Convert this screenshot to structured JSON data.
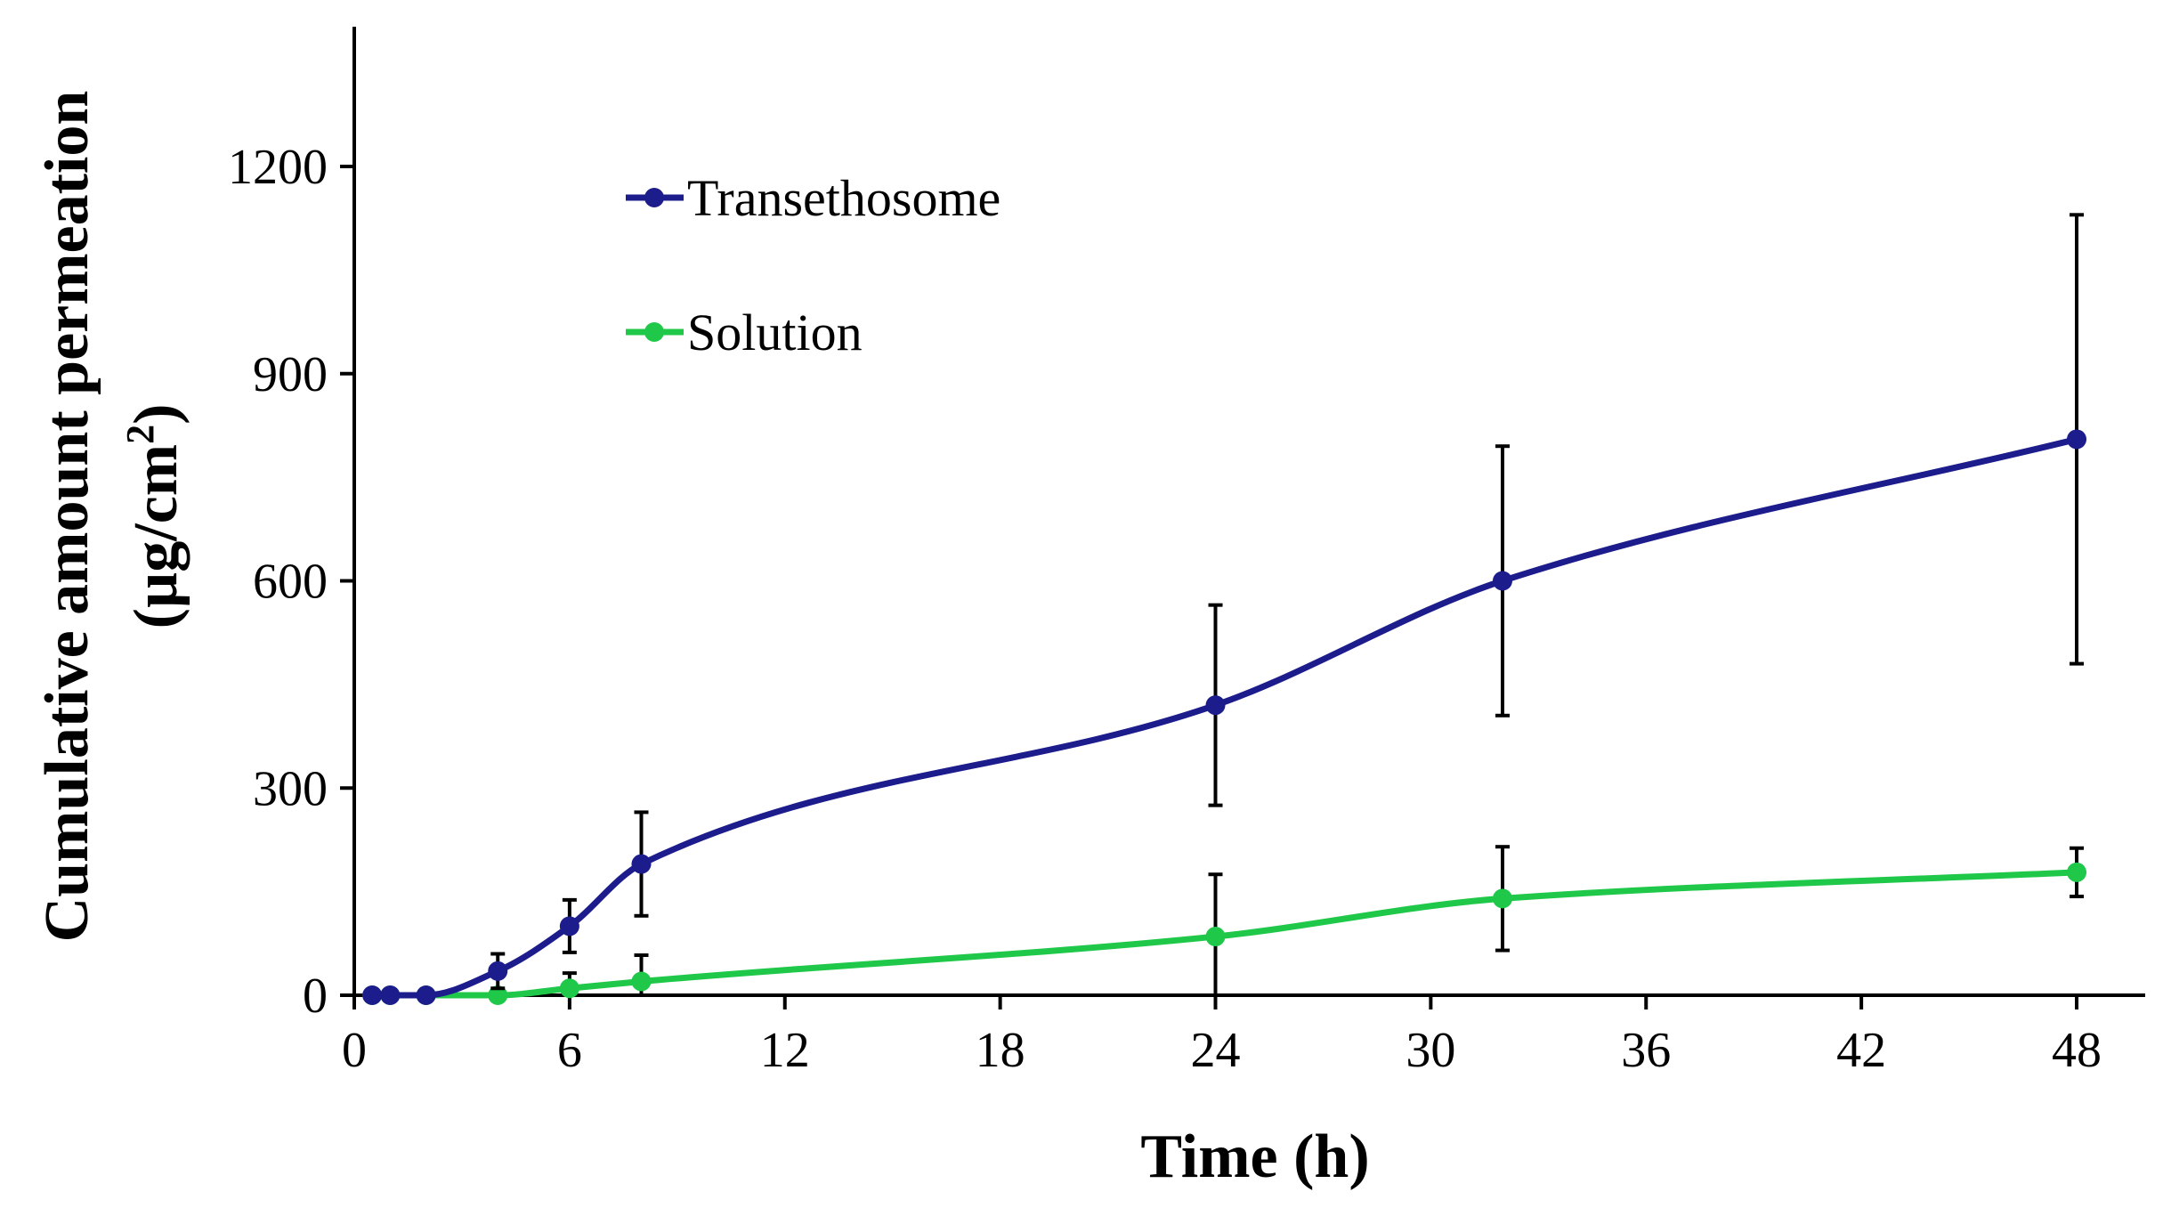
{
  "chart_data": {
    "type": "line",
    "title": "",
    "xlabel": "Time (h)",
    "ylabel_line1": "Cumulative amount permeation",
    "ylabel_line2_prefix": "(µg/cm",
    "ylabel_line2_sup": "2",
    "ylabel_line2_suffix": ")",
    "xlim": [
      0,
      50
    ],
    "ylim": [
      0,
      1400
    ],
    "xticks": [
      0,
      6,
      12,
      18,
      24,
      30,
      36,
      42,
      48
    ],
    "yticks": [
      0,
      300,
      600,
      900,
      1200
    ],
    "grid": false,
    "legend_position": "top-left",
    "series": [
      {
        "name": "Transethosome",
        "color": "#1c1c8c",
        "x": [
          0.5,
          1,
          2,
          4,
          6,
          8,
          24,
          32,
          48
        ],
        "y": [
          0,
          0,
          0,
          35,
          100,
          190,
          420,
          600,
          805
        ],
        "error": [
          0,
          0,
          0,
          25,
          38,
          75,
          145,
          195,
          325
        ]
      },
      {
        "name": "Solution",
        "color": "#20c84a",
        "x": [
          0.5,
          1,
          2,
          4,
          6,
          8,
          24,
          32,
          48
        ],
        "y": [
          0,
          0,
          0,
          0,
          10,
          20,
          85,
          140,
          178
        ],
        "error": [
          0,
          0,
          0,
          0,
          22,
          38,
          90,
          75,
          35
        ]
      }
    ]
  }
}
